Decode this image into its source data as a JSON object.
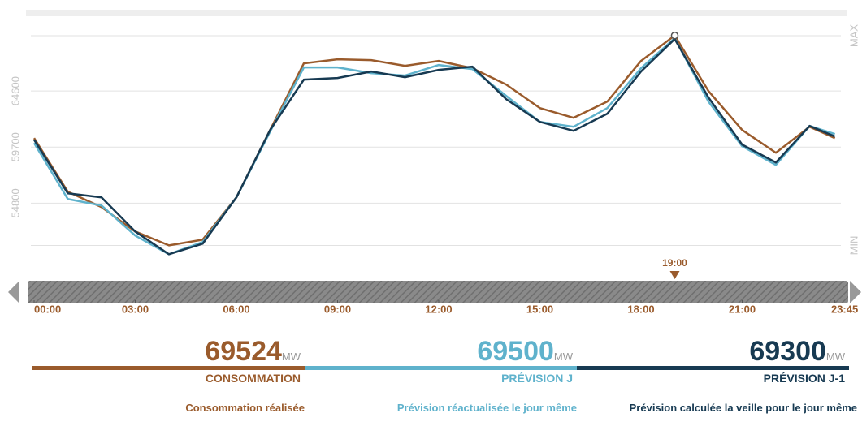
{
  "chart_data": {
    "type": "line",
    "x": [
      0,
      1,
      2,
      3,
      4,
      5,
      6,
      7,
      8,
      9,
      10,
      11,
      12,
      13,
      14,
      15,
      16,
      17,
      18,
      19,
      20,
      21,
      22,
      23,
      23.75
    ],
    "xlim": [
      0,
      23.75
    ],
    "xticks": [
      {
        "value": 0,
        "label": "00:00"
      },
      {
        "value": 3,
        "label": "03:00"
      },
      {
        "value": 6,
        "label": "06:00"
      },
      {
        "value": 9,
        "label": "09:00"
      },
      {
        "value": 12,
        "label": "12:00"
      },
      {
        "value": 15,
        "label": "15:00"
      },
      {
        "value": 18,
        "label": "18:00"
      },
      {
        "value": 21,
        "label": "21:00"
      },
      {
        "value": 23.75,
        "label": "23:45"
      }
    ],
    "ylim": [
      50000,
      70000
    ],
    "yticks": [
      {
        "value": 51100,
        "label": "MIN"
      },
      54800,
      59700,
      64600,
      {
        "value": 69430,
        "label": "MAX"
      }
    ],
    "grid": true,
    "cursor": {
      "x": 19,
      "label": "19:00"
    },
    "series": [
      {
        "name": "Consommation réalisée",
        "label": "CONSOMMATION",
        "current": 69524,
        "unit": "MW",
        "color": "#9a5b2c",
        "values": [
          60482,
          55796,
          54447,
          52317,
          51110,
          51607,
          55299,
          61192,
          67014,
          67369,
          67298,
          66801,
          67227,
          66588,
          65168,
          63109,
          62257,
          63677,
          67227,
          69450,
          64600,
          61192,
          59204,
          61476,
          60482
        ]
      },
      {
        "name": "Prévision réactualisée le jour même",
        "label": "PRÉVISION J",
        "current": 69500,
        "unit": "MW",
        "color": "#5fb2cc",
        "values": [
          60056,
          55157,
          54589,
          51962,
          50329,
          51394,
          55299,
          61050,
          66659,
          66659,
          66162,
          65949,
          66872,
          66517,
          64174,
          61902,
          61476,
          63109,
          66588,
          69215,
          63677,
          59772,
          58139,
          61547,
          60837
        ]
      },
      {
        "name": "Prévision calculée la veille pour le jour même",
        "label": "PRÉVISION J-1",
        "current": 69300,
        "unit": "MW",
        "color": "#173a52",
        "values": [
          60340,
          55654,
          55299,
          52317,
          50329,
          51252,
          55299,
          61192,
          65594,
          65736,
          66304,
          65807,
          66446,
          66730,
          63890,
          61902,
          61121,
          62612,
          66304,
          69144,
          64032,
          59914,
          58352,
          61547,
          60624
        ]
      }
    ]
  }
}
